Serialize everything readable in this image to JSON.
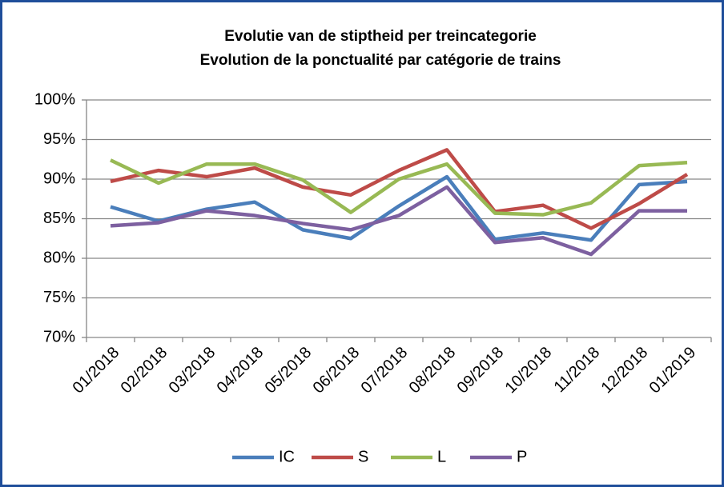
{
  "chart_data": {
    "type": "line",
    "title": "Evolutie van de stiptheid per treincategorie",
    "subtitle": "Evolution de la ponctualité par catégorie de trains",
    "categories": [
      "01/2018",
      "02/2018",
      "03/2018",
      "04/2018",
      "05/2018",
      "06/2018",
      "07/2018",
      "08/2018",
      "09/2018",
      "10/2018",
      "11/2018",
      "12/2018",
      "01/2019"
    ],
    "series": [
      {
        "name": "IC",
        "color": "#4a7ebb",
        "values": [
          86.5,
          84.7,
          86.2,
          87.1,
          83.6,
          82.5,
          86.6,
          90.3,
          82.4,
          83.2,
          82.3,
          89.3,
          89.7
        ]
      },
      {
        "name": "S",
        "color": "#be4b48",
        "values": [
          89.7,
          91.1,
          90.3,
          91.4,
          89.0,
          88.0,
          91.1,
          93.7,
          85.9,
          86.7,
          83.8,
          86.9,
          90.6
        ]
      },
      {
        "name": "L",
        "color": "#98b954",
        "values": [
          92.4,
          89.5,
          91.9,
          91.9,
          89.9,
          85.8,
          90.0,
          91.9,
          85.7,
          85.5,
          87.0,
          91.7,
          92.1
        ]
      },
      {
        "name": "P",
        "color": "#7d60a0",
        "values": [
          84.1,
          84.5,
          86.0,
          85.4,
          84.4,
          83.6,
          85.4,
          89.0,
          82.0,
          82.6,
          80.5,
          86.0,
          86.0
        ]
      }
    ],
    "ylim": [
      70,
      100
    ],
    "yticks": [
      {
        "value": 70,
        "label": "70%"
      },
      {
        "value": 75,
        "label": "75%"
      },
      {
        "value": 80,
        "label": "80%"
      },
      {
        "value": 85,
        "label": "85%"
      },
      {
        "value": 90,
        "label": "90%"
      },
      {
        "value": 95,
        "label": "95%"
      },
      {
        "value": 100,
        "label": "100%"
      }
    ],
    "grid": true,
    "legend": "bottom"
  }
}
